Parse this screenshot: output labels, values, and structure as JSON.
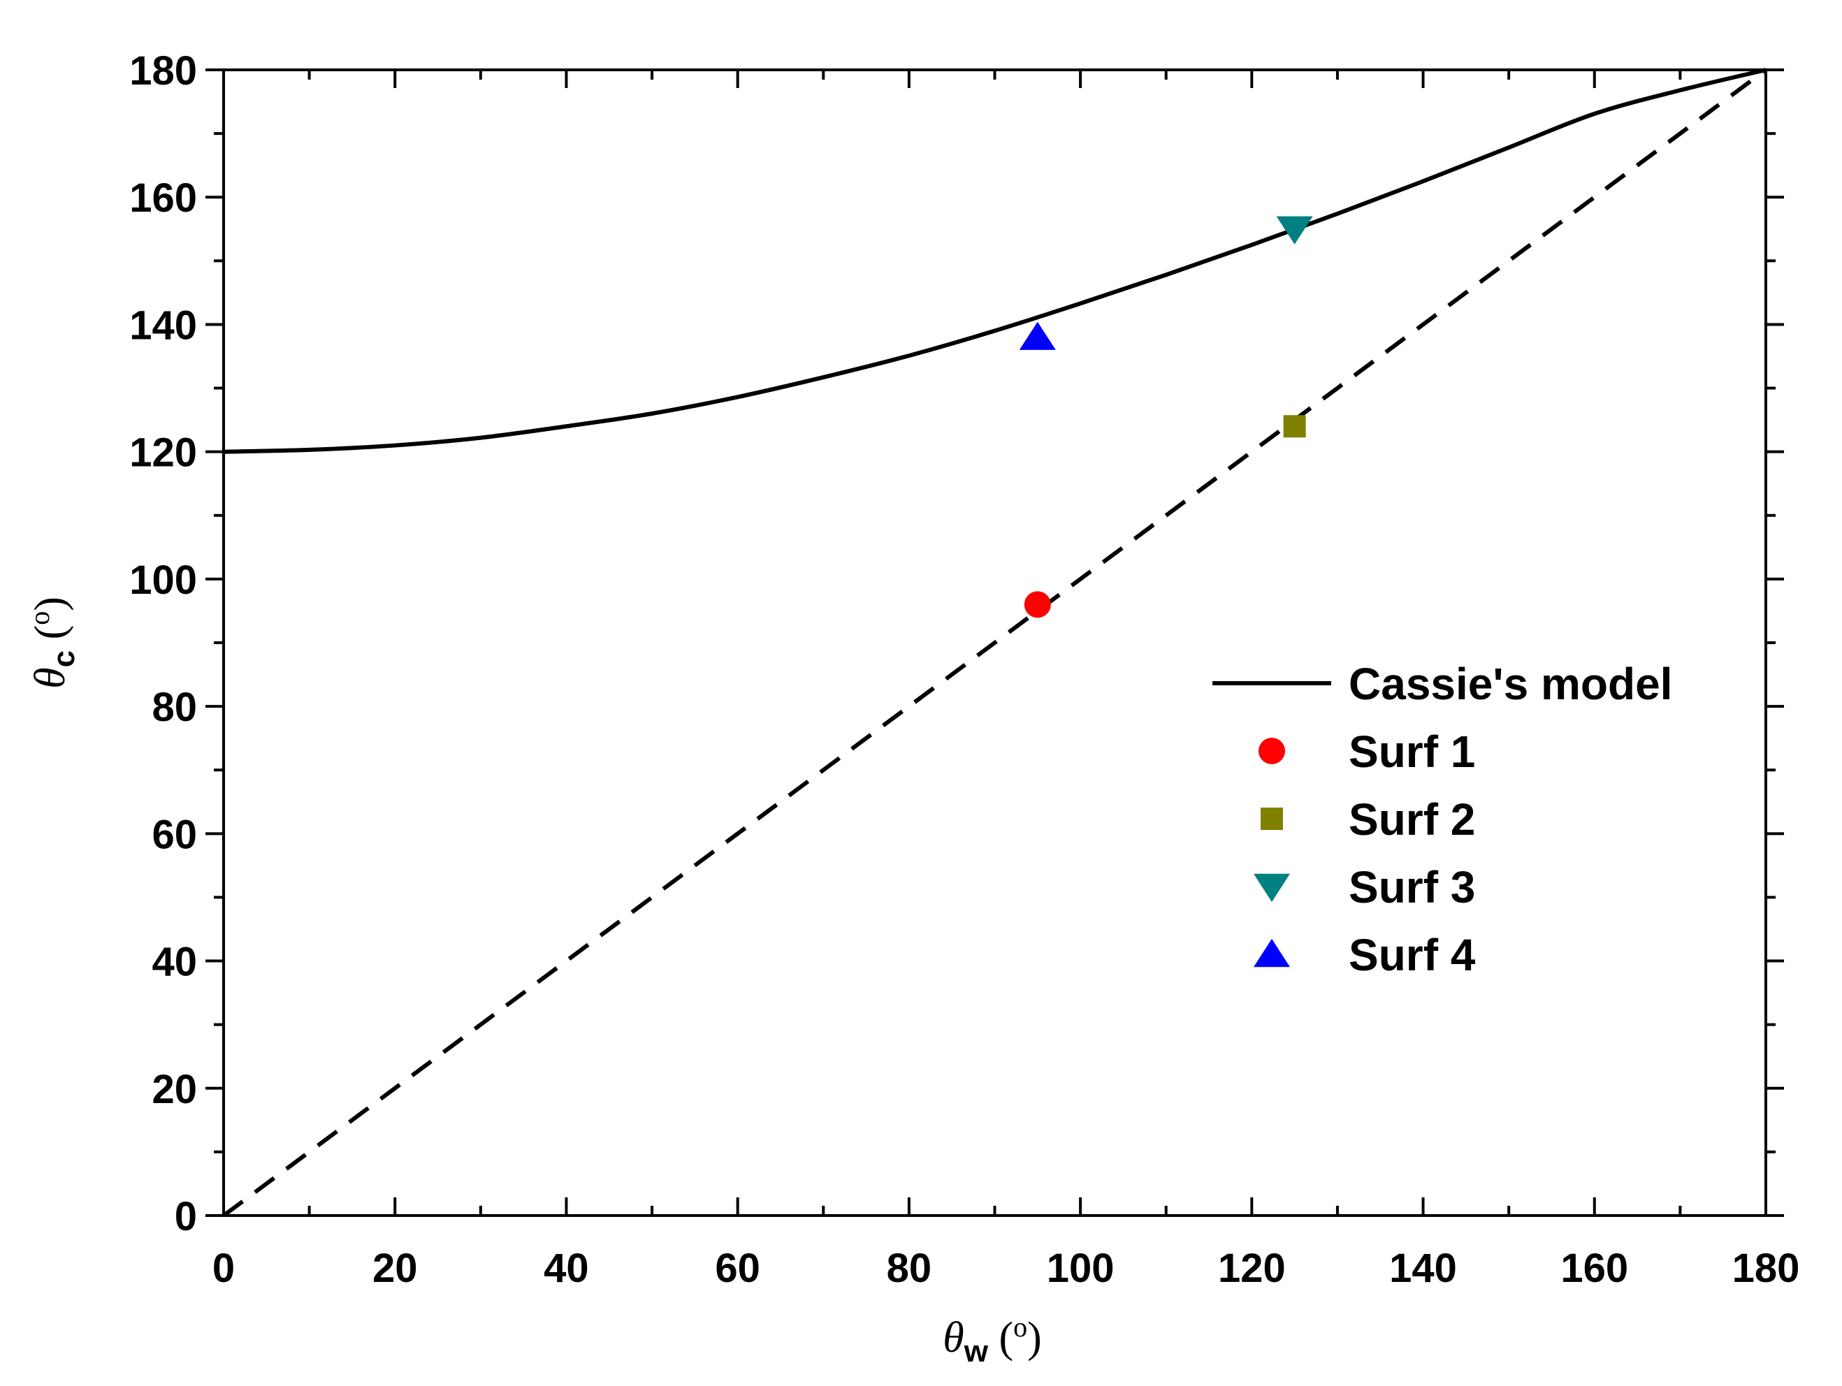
{
  "chart_data": {
    "type": "line",
    "title": "",
    "x_axis": {
      "symbol": "θ",
      "subscript": "w",
      "unit": "(o)",
      "min": 0,
      "max": 180,
      "ticks": [
        0,
        20,
        40,
        60,
        80,
        100,
        120,
        140,
        160,
        180
      ],
      "tick_labels": [
        "0",
        "20",
        "40",
        "60",
        "80",
        "100",
        "120",
        "140",
        "160",
        "180"
      ]
    },
    "y_axis": {
      "symbol": "θ",
      "subscript": "c",
      "unit": "(o)",
      "min": 0,
      "max": 180,
      "ticks": [
        0,
        20,
        40,
        60,
        80,
        100,
        120,
        140,
        160,
        180
      ],
      "tick_labels": [
        "0",
        "20",
        "40",
        "60",
        "80",
        "100",
        "120",
        "140",
        "160",
        "180"
      ]
    },
    "series": [
      {
        "name": "Cassie's model",
        "kind": "line",
        "color": "#000000",
        "dash": "solid",
        "x": [
          0,
          10,
          20,
          30,
          40,
          50,
          60,
          70,
          80,
          90,
          100,
          110,
          120,
          130,
          140,
          150,
          160,
          170,
          180
        ],
        "y": [
          120.0,
          120.3,
          121.0,
          122.2,
          124.0,
          126.0,
          128.6,
          131.7,
          135.1,
          139.0,
          143.3,
          147.8,
          152.5,
          157.4,
          162.5,
          167.8,
          173.1,
          176.8,
          180.0
        ]
      },
      {
        "name": "",
        "kind": "line",
        "color": "#000000",
        "dash": "dashed",
        "x": [
          0,
          180
        ],
        "y": [
          0,
          180
        ]
      },
      {
        "name": "Surf 1",
        "kind": "scatter",
        "marker": "circle",
        "color": "#ff0000",
        "x": [
          95
        ],
        "y": [
          96
        ]
      },
      {
        "name": "Surf 2",
        "kind": "scatter",
        "marker": "square",
        "color": "#808000",
        "x": [
          125
        ],
        "y": [
          124
        ]
      },
      {
        "name": "Surf 3",
        "kind": "scatter",
        "marker": "triangle-down",
        "color": "#008080",
        "x": [
          125
        ],
        "y": [
          155
        ]
      },
      {
        "name": "Surf 4",
        "kind": "scatter",
        "marker": "triangle-up",
        "color": "#0000ff",
        "x": [
          95
        ],
        "y": [
          138
        ]
      }
    ],
    "legend": {
      "position": "center-right",
      "entries": [
        "Cassie's model",
        "Surf 1",
        "Surf 2",
        "Surf 3",
        "Surf 4"
      ]
    },
    "grid": false
  }
}
